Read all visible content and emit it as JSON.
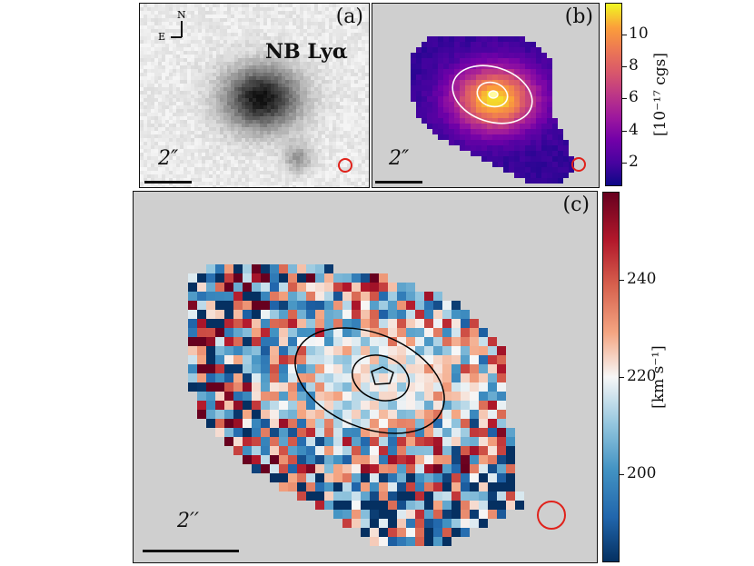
{
  "panels": {
    "a": {
      "label": "(a)",
      "title": "NB Lyα",
      "scale": "2″",
      "compass": {
        "north": "N",
        "east": "E"
      }
    },
    "b": {
      "label": "(b)",
      "scale": "2″"
    },
    "c": {
      "label": "(c)",
      "scale": "2′′"
    }
  },
  "colorbar_b": {
    "unit": "[10⁻¹⁷ cgs]",
    "ticks": [
      "10",
      "8",
      "6",
      "4",
      "2"
    ],
    "colormap": "plasma"
  },
  "colorbar_c": {
    "unit": "[km s⁻¹]",
    "ticks": [
      "240",
      "220",
      "200"
    ],
    "colormap": "RdBu_r"
  },
  "colors": {
    "beam": "#e0221b",
    "contour_b": "#ffffff",
    "contour_c": "#000000",
    "background": "#cfcfcf"
  }
}
